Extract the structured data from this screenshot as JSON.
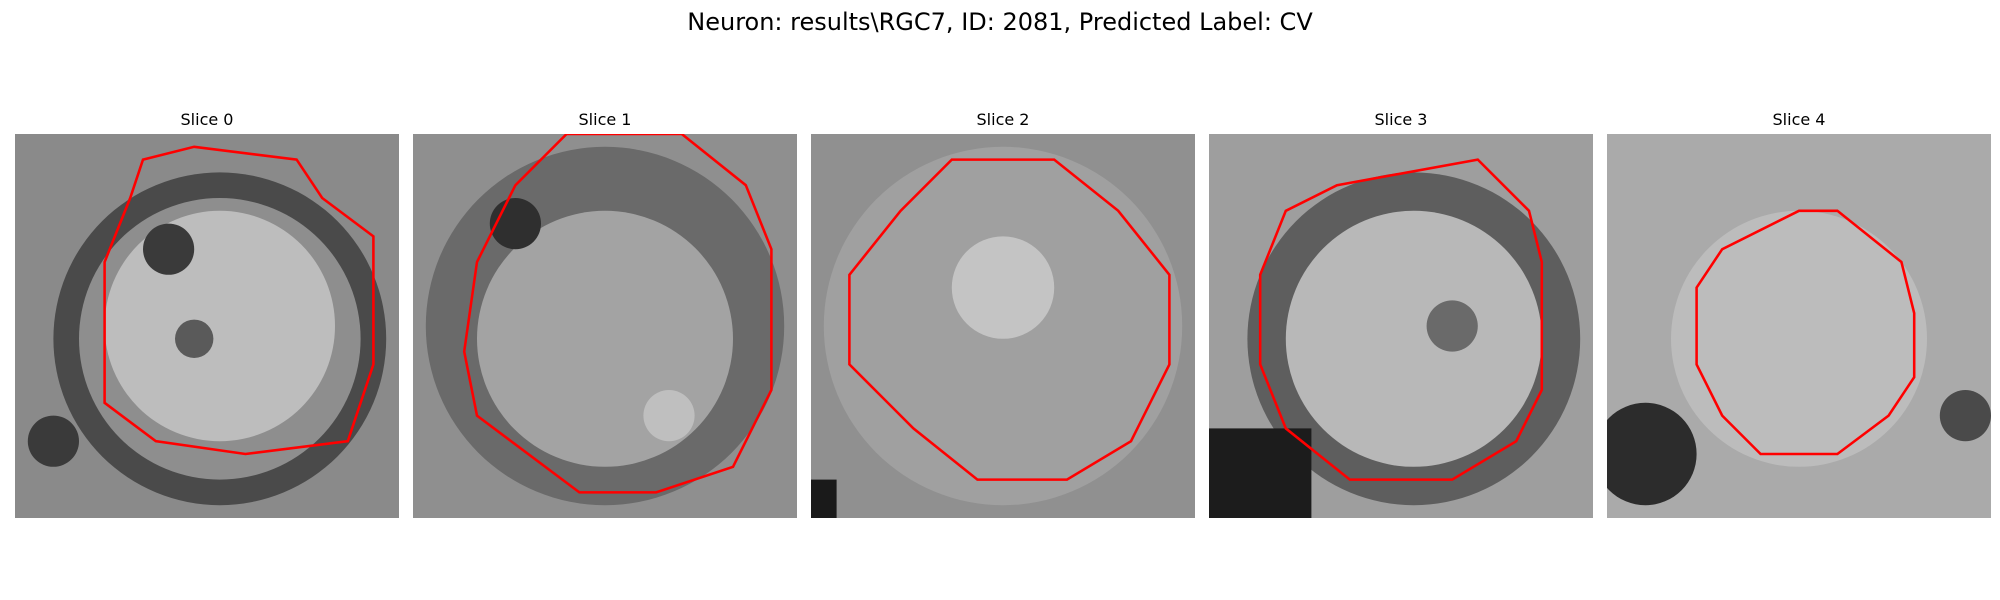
{
  "figure": {
    "title": "Neuron: results\\RGC7, ID: 2081, Predicted Label: CV",
    "contour_color": "#ff0000"
  },
  "slices": [
    {
      "title": "Slice 0"
    },
    {
      "title": "Slice 1"
    },
    {
      "title": "Slice 2"
    },
    {
      "title": "Slice 3"
    },
    {
      "title": "Slice 4"
    }
  ]
}
